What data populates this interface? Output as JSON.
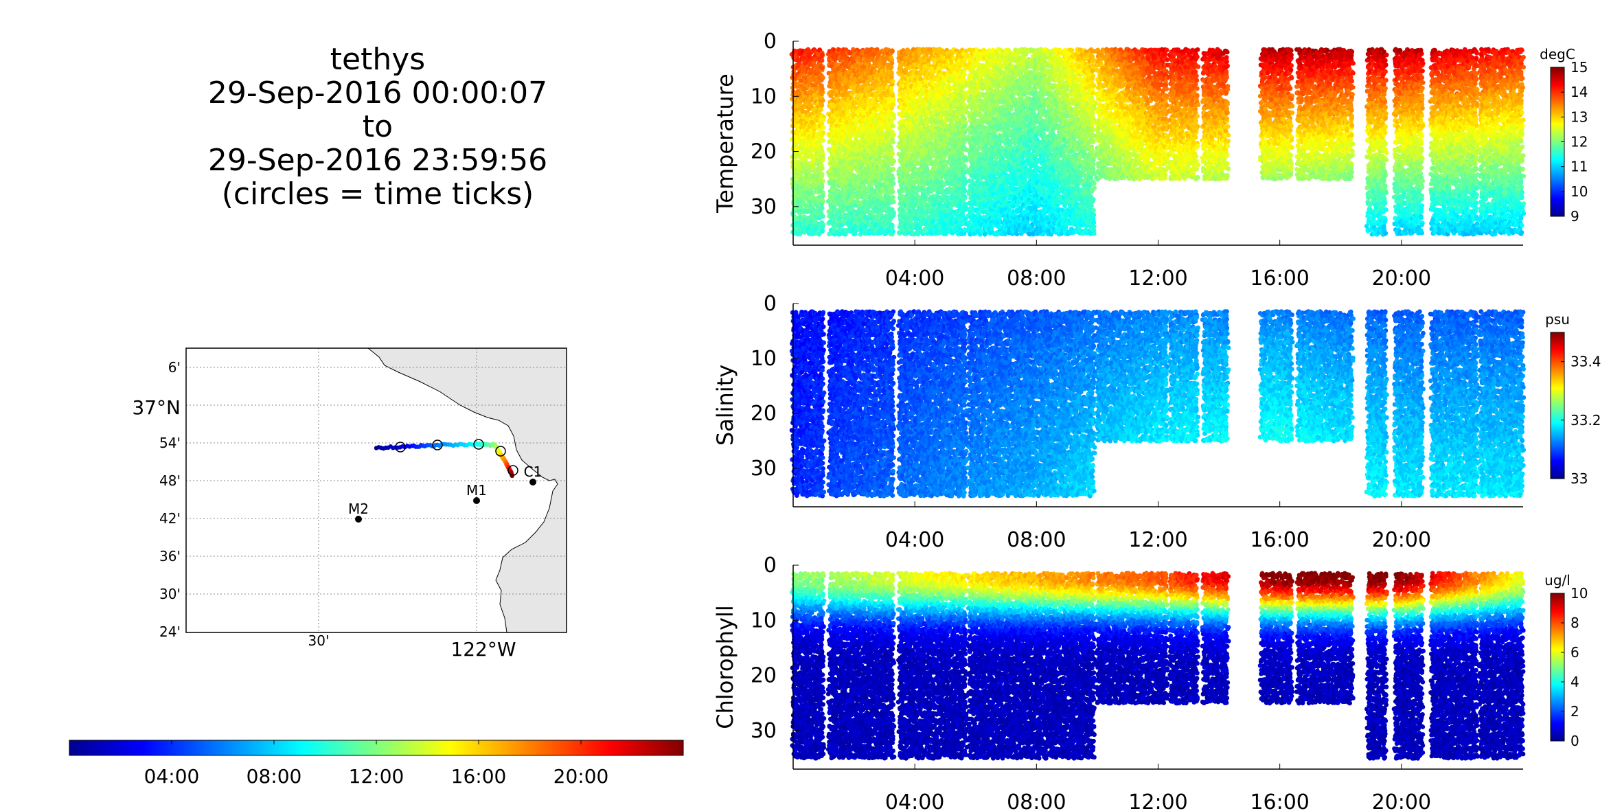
{
  "header": {
    "vehicle": "tethys",
    "start": "29-Sep-2016 00:00:07",
    "to": "to",
    "end": "29-Sep-2016 23:59:56",
    "note": "(circles = time ticks)"
  },
  "colors": {
    "land": "#e6e6e6",
    "station_marker": "#000000",
    "axis": "#000000",
    "grid": "#888888",
    "colormap_stops": [
      "#00008f",
      "#0000ff",
      "#00ffff",
      "#ffff00",
      "#ff0000",
      "#800000"
    ]
  },
  "map": {
    "lat_ticks": [
      "6'",
      "37°N",
      "54'",
      "48'",
      "42'",
      "36'",
      "30'",
      "24'"
    ],
    "lon_ticks": [
      "30'",
      "122°W"
    ],
    "stations": [
      {
        "name": "M2",
        "lat_label": "~36.70N",
        "lon_label": "~122.39W"
      },
      {
        "name": "M1",
        "lat_label": "~36.75N",
        "lon_label": "~122.03W"
      },
      {
        "name": "C1",
        "lat_label": "~36.80N",
        "lon_label": "~121.86W"
      }
    ],
    "track_time_ticks": [
      "04:00",
      "08:00",
      "12:00",
      "16:00",
      "20:00"
    ]
  },
  "time_colorbar": {
    "ticks": [
      "04:00",
      "08:00",
      "12:00",
      "16:00",
      "20:00"
    ]
  },
  "chart_data": [
    {
      "type": "scatter",
      "title": "",
      "ylabel": "Temperature",
      "units": "degC",
      "x_range_hours": [
        0,
        24
      ],
      "x_ticks": [
        "04:00",
        "08:00",
        "12:00",
        "16:00",
        "20:00"
      ],
      "y_ticks": [
        "0",
        "10",
        "20",
        "30"
      ],
      "ylim": [
        0,
        37
      ],
      "y_reversed": true,
      "colorbar": {
        "label": "degC",
        "range": [
          9,
          15
        ],
        "ticks": [
          "15",
          "14",
          "13",
          "12",
          "11",
          "10",
          "9"
        ]
      },
      "profile_segments": [
        {
          "start": 0.0,
          "end": 1.0,
          "max_depth": 35
        },
        {
          "start": 1.2,
          "end": 3.3,
          "max_depth": 35
        },
        {
          "start": 3.5,
          "end": 5.7,
          "max_depth": 35
        },
        {
          "start": 5.8,
          "end": 9.9,
          "max_depth": 35
        },
        {
          "start": 10.0,
          "end": 12.3,
          "max_depth": 25
        },
        {
          "start": 12.4,
          "end": 13.3,
          "max_depth": 25
        },
        {
          "start": 13.5,
          "end": 14.3,
          "max_depth": 25
        },
        {
          "start": 15.4,
          "end": 16.4,
          "max_depth": 25
        },
        {
          "start": 16.6,
          "end": 18.4,
          "max_depth": 25
        },
        {
          "start": 18.9,
          "end": 19.5,
          "max_depth": 35
        },
        {
          "start": 19.8,
          "end": 20.7,
          "max_depth": 35
        },
        {
          "start": 21.0,
          "end": 22.5,
          "max_depth": 35
        },
        {
          "start": 22.6,
          "end": 24.0,
          "max_depth": 35
        }
      ],
      "approx_surface_values_by_hour": [
        [
          0,
          14.5
        ],
        [
          4,
          13.5
        ],
        [
          8,
          12.5
        ],
        [
          12,
          14.5
        ],
        [
          16,
          15.0
        ],
        [
          20,
          15.0
        ],
        [
          24,
          14.5
        ]
      ],
      "approx_bottom_values_by_hour": [
        [
          0,
          11.5
        ],
        [
          4,
          11.5
        ],
        [
          8,
          11.0
        ],
        [
          12,
          11.8
        ],
        [
          16,
          11.3
        ],
        [
          20,
          11.0
        ],
        [
          24,
          11.0
        ]
      ]
    },
    {
      "type": "scatter",
      "title": "",
      "ylabel": "Salinity",
      "units": "psu",
      "x_range_hours": [
        0,
        24
      ],
      "x_ticks": [
        "04:00",
        "08:00",
        "12:00",
        "16:00",
        "20:00"
      ],
      "y_ticks": [
        "0",
        "10",
        "20",
        "30"
      ],
      "ylim": [
        0,
        37
      ],
      "y_reversed": true,
      "colorbar": {
        "label": "psu",
        "range": [
          33.0,
          33.5
        ],
        "ticks": [
          "33.4",
          "33.2",
          "33"
        ]
      },
      "approx_surface_values_by_hour": [
        [
          0,
          33.06
        ],
        [
          4,
          33.08
        ],
        [
          8,
          33.1
        ],
        [
          12,
          33.12
        ],
        [
          16,
          33.12
        ],
        [
          20,
          33.1
        ],
        [
          24,
          33.1
        ]
      ],
      "approx_bottom_values_by_hour": [
        [
          0,
          33.08
        ],
        [
          4,
          33.12
        ],
        [
          8,
          33.15
        ],
        [
          12,
          33.2
        ],
        [
          16,
          33.22
        ],
        [
          20,
          33.18
        ],
        [
          24,
          33.18
        ]
      ]
    },
    {
      "type": "scatter",
      "title": "",
      "ylabel": "Chlorophyll",
      "units": "ug/l",
      "x_range_hours": [
        0,
        24
      ],
      "x_ticks": [
        "04:00",
        "08:00",
        "12:00",
        "16:00",
        "20:00"
      ],
      "y_ticks": [
        "0",
        "10",
        "20",
        "30"
      ],
      "ylim": [
        0,
        37
      ],
      "y_reversed": true,
      "colorbar": {
        "label": "ug/l",
        "range": [
          0,
          10
        ],
        "ticks": [
          "10",
          "8",
          "6",
          "4",
          "2",
          "0"
        ]
      },
      "approx_surface_values_by_hour": [
        [
          0,
          5
        ],
        [
          4,
          6
        ],
        [
          8,
          7
        ],
        [
          12,
          8
        ],
        [
          16,
          10
        ],
        [
          20,
          10
        ],
        [
          24,
          6
        ]
      ],
      "approx_bottom_values_by_hour": [
        [
          0,
          0.5
        ],
        [
          4,
          0.5
        ],
        [
          8,
          0.5
        ],
        [
          12,
          0.5
        ],
        [
          16,
          0.5
        ],
        [
          20,
          0.5
        ],
        [
          24,
          0.5
        ]
      ]
    }
  ]
}
